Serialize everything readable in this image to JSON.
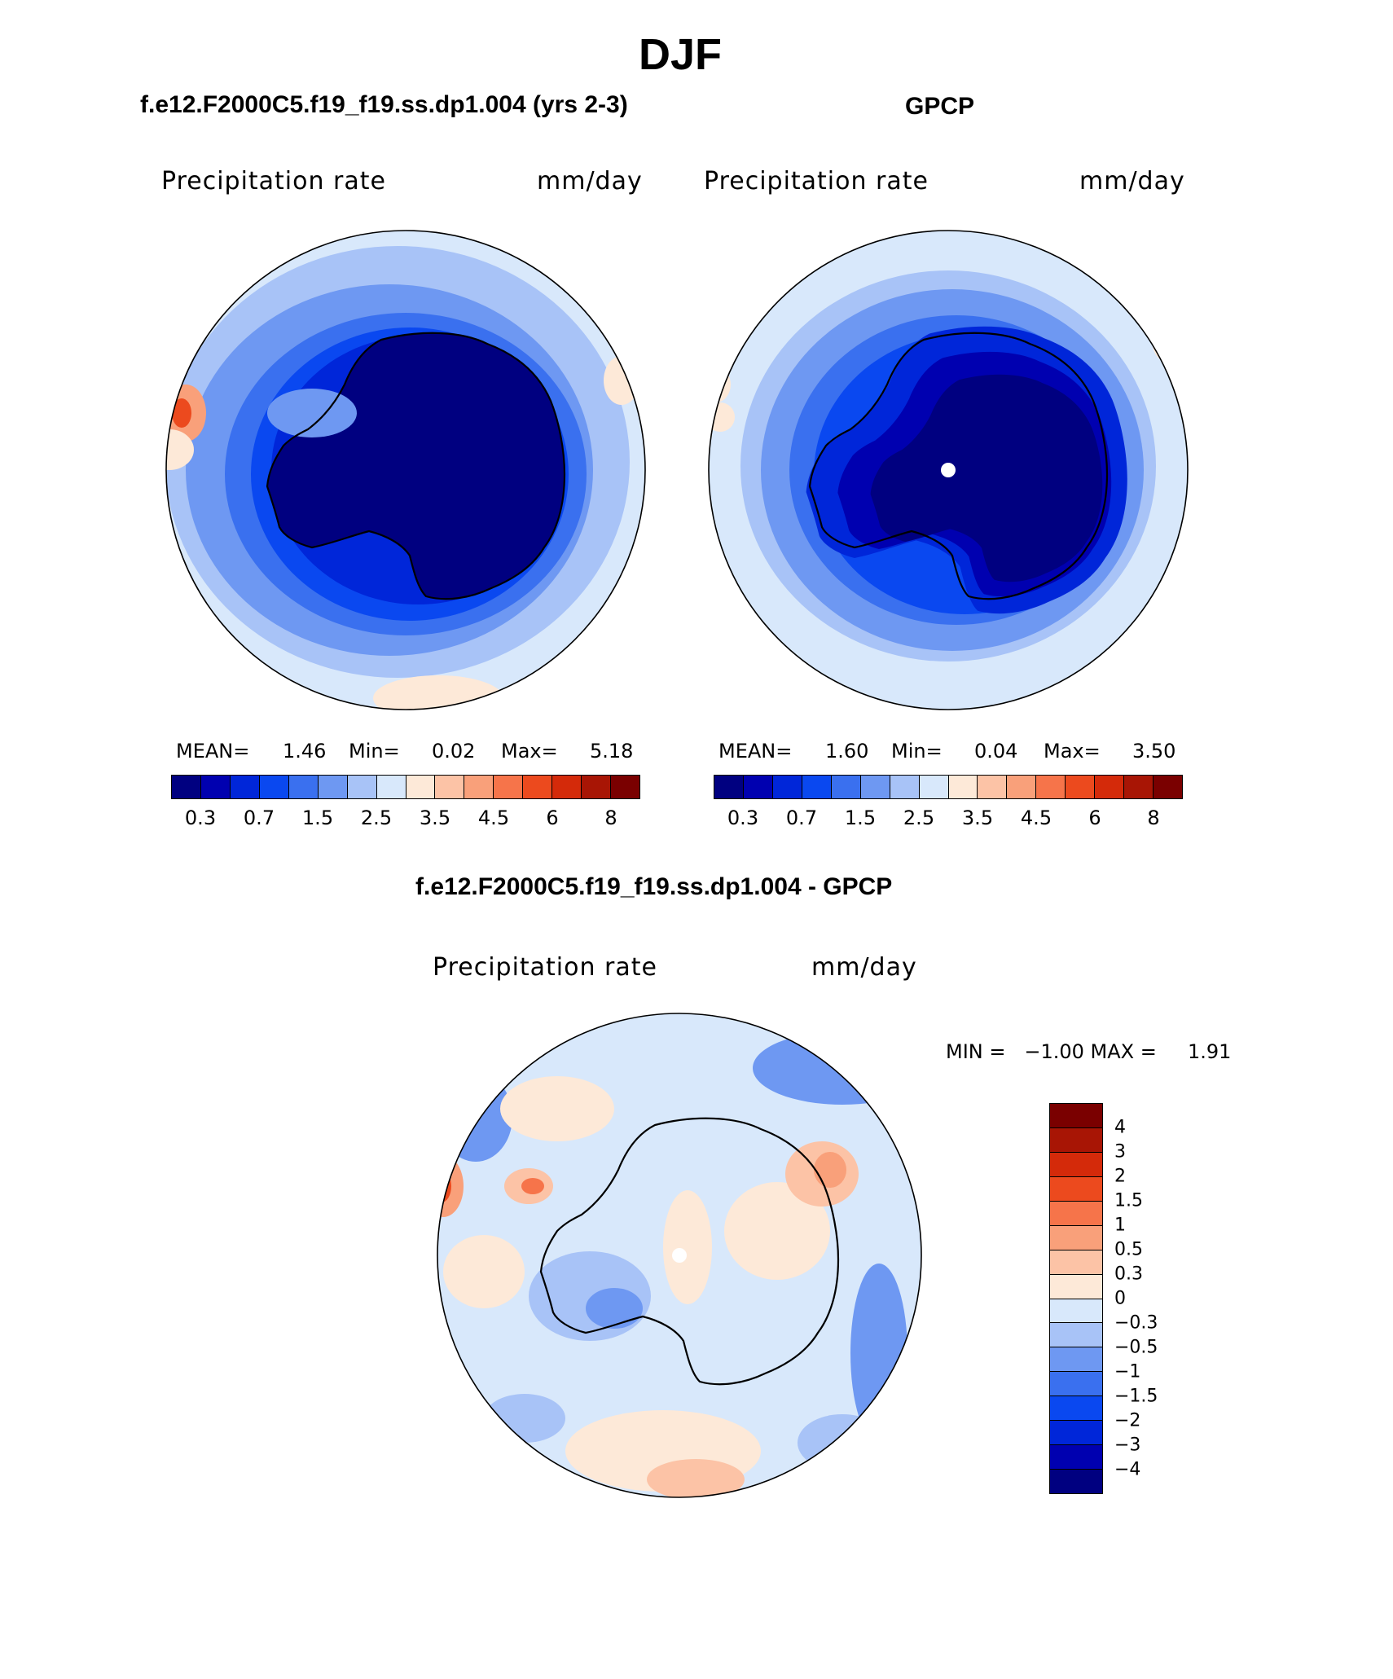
{
  "figure": {
    "title": "DJF",
    "panel1_heading": "f.e12.F2000C5.f19_f19.ss.dp1.004 (yrs 2-3)",
    "panel2_heading": "GPCP",
    "panel3_heading": "f.e12.F2000C5.f19_f19.ss.dp1.004 - GPCP"
  },
  "panels": {
    "model": {
      "variable": "Precipitation rate",
      "units": "mm/day",
      "mean_label": "MEAN=",
      "mean": "1.46",
      "min_label": "Min=",
      "min": "0.02",
      "max_label": "Max=",
      "max": "5.18"
    },
    "obs": {
      "variable": "Precipitation rate",
      "units": "mm/day",
      "mean_label": "MEAN=",
      "mean": "1.60",
      "min_label": "Min=",
      "min": "0.04",
      "max_label": "Max=",
      "max": "3.50"
    },
    "diff": {
      "variable": "Precipitation rate",
      "units": "mm/day",
      "minmax_text": "MIN =   −1.00 MAX =     1.91"
    }
  },
  "colorbar_h": {
    "colors": [
      "#000080",
      "#0000b0",
      "#0026d9",
      "#0a48f0",
      "#3a70ef",
      "#6e98f2",
      "#a8c3f7",
      "#d8e8fb",
      "#fde9d8",
      "#fcc3a6",
      "#f9a07a",
      "#f6744a",
      "#ec4a1e",
      "#d42a0a",
      "#a81505",
      "#7a0000"
    ],
    "tick_labels": [
      "0.3",
      "0.7",
      "1.5",
      "2.5",
      "3.5",
      "4.5",
      "6",
      "8"
    ],
    "tick_edges": [
      1,
      3,
      5,
      7,
      9,
      11,
      13,
      15
    ]
  },
  "colorbar_v": {
    "colors": [
      "#7a0000",
      "#a81505",
      "#d42a0a",
      "#ec4a1e",
      "#f6744a",
      "#f9a07a",
      "#fcc3a6",
      "#fde9d8",
      "#d8e8fb",
      "#a8c3f7",
      "#6e98f2",
      "#3a70ef",
      "#0a48f0",
      "#0026d9",
      "#0000b0",
      "#000080"
    ],
    "tick_labels": [
      "4",
      "3",
      "2",
      "1.5",
      "1",
      "0.5",
      "0.3",
      "0",
      "−0.3",
      "−0.5",
      "−1",
      "−1.5",
      "−2",
      "−3",
      "−4"
    ]
  },
  "chart_data": [
    {
      "type": "heatmap",
      "title": "Precipitation rate (mm/day) — f.e12.F2000C5.f19_f19.ss.dp1.004 (yrs 2-3), DJF",
      "projection": "south polar stereographic",
      "levels": [
        0.3,
        0.5,
        0.7,
        1,
        1.5,
        2,
        2.5,
        3,
        3.5,
        4,
        4.5,
        5,
        6,
        7,
        8
      ],
      "stats": {
        "mean": 1.46,
        "min": 0.02,
        "max": 5.18
      }
    },
    {
      "type": "heatmap",
      "title": "Precipitation rate (mm/day) — GPCP, DJF",
      "projection": "south polar stereographic",
      "levels": [
        0.3,
        0.5,
        0.7,
        1,
        1.5,
        2,
        2.5,
        3,
        3.5,
        4,
        4.5,
        5,
        6,
        7,
        8
      ],
      "stats": {
        "mean": 1.6,
        "min": 0.04,
        "max": 3.5
      }
    },
    {
      "type": "heatmap",
      "title": "Precipitation rate (mm/day) — model minus GPCP, DJF",
      "projection": "south polar stereographic",
      "levels": [
        -4,
        -3,
        -2,
        -1.5,
        -1,
        -0.5,
        -0.3,
        0,
        0.3,
        0.5,
        1,
        1.5,
        2,
        3,
        4
      ],
      "stats": {
        "min": -1.0,
        "max": 1.91
      }
    }
  ]
}
